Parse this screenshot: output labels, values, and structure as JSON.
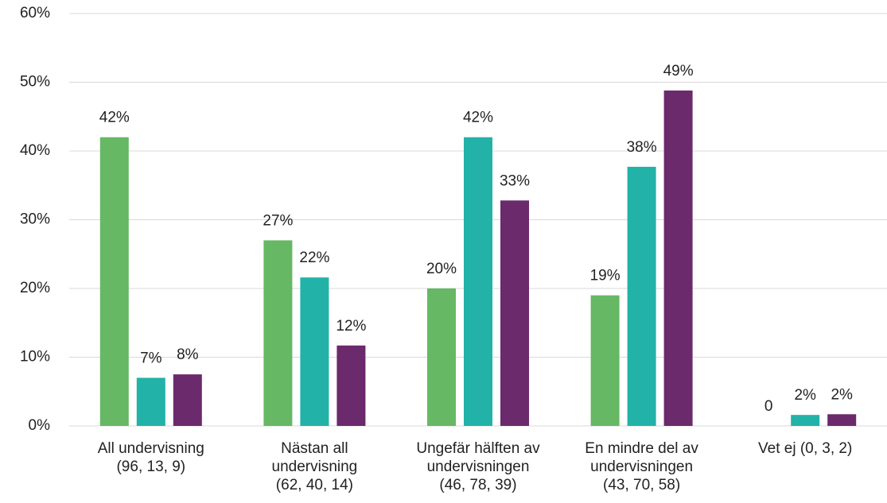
{
  "chart_data": {
    "type": "bar",
    "categories": [
      "All undervisning\n(96, 13, 9)",
      "Nästan all\nundervisning\n(62, 40, 14)",
      "Ungefär hälften av\nundervisningen\n(46, 78, 39)",
      "En mindre del av\nundervisningen\n(43, 70, 58)",
      "Vet ej (0, 3, 2)"
    ],
    "series": [
      {
        "color": "#66b864",
        "values": [
          42,
          27,
          20,
          19,
          0
        ],
        "value_labels": [
          "42%",
          "27%",
          "20%",
          "19%",
          "0"
        ]
      },
      {
        "color": "#22b2a8",
        "values": [
          7,
          21.6,
          42,
          37.7,
          1.6
        ],
        "value_labels": [
          "7%",
          "22%",
          "42%",
          "38%",
          "2%"
        ]
      },
      {
        "color": "#6b2a6b",
        "values": [
          7.5,
          11.7,
          32.8,
          48.8,
          1.7
        ],
        "value_labels": [
          "8%",
          "12%",
          "33%",
          "49%",
          "2%"
        ]
      }
    ],
    "ylim": [
      0,
      60
    ],
    "yticks": [
      {
        "value": 0,
        "label": "0%"
      },
      {
        "value": 10,
        "label": "10%"
      },
      {
        "value": 20,
        "label": "20%"
      },
      {
        "value": 30,
        "label": "30%"
      },
      {
        "value": 40,
        "label": "40%"
      },
      {
        "value": 50,
        "label": "50%"
      },
      {
        "value": 60,
        "label": "60%"
      }
    ],
    "grid": true
  }
}
